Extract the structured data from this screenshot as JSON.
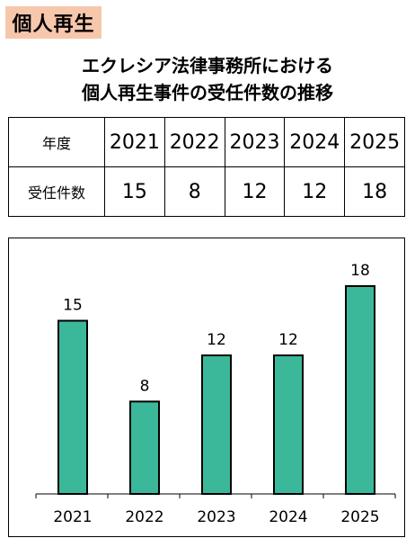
{
  "badge": "個人再生",
  "title_line1": "エクレシア法律事務所における",
  "title_line2": "個人再生事件の受任件数の推移",
  "table": {
    "year_header": "年度",
    "count_header": "受任件数",
    "years": [
      "2021",
      "2022",
      "2023",
      "2024",
      "2025"
    ],
    "counts": [
      "15",
      "8",
      "12",
      "12",
      "18"
    ]
  },
  "chart_data": {
    "type": "bar",
    "categories": [
      "2021",
      "2022",
      "2023",
      "2024",
      "2025"
    ],
    "values": [
      15,
      8,
      12,
      12,
      18
    ],
    "title": "",
    "xlabel": "",
    "ylabel": "",
    "ylim": [
      0,
      20
    ],
    "grid": false,
    "data_labels": true,
    "bar_color": "#3bb89a"
  }
}
